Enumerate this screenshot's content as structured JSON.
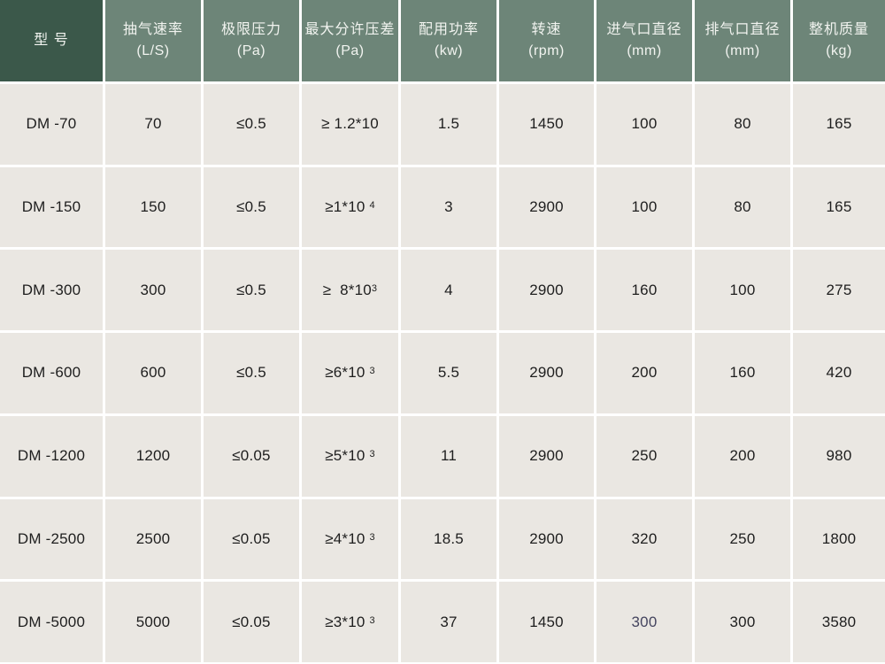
{
  "colors": {
    "header-dark": "#3b584a",
    "header-light": "#6d8578",
    "cell-bg": "#eae7e2",
    "grid-line": "#ffffff",
    "text": "#1e1e1e",
    "header-text": "#f2f4f0",
    "accent": "#45455f"
  },
  "table": {
    "columns": [
      {
        "line1": "型  号",
        "line2": ""
      },
      {
        "line1": "抽气速率",
        "line2": "(L/S)"
      },
      {
        "line1": "极限压力",
        "line2": "(Pa)"
      },
      {
        "line1": "最大分许压差",
        "line2": "(Pa)"
      },
      {
        "line1": "配用功率",
        "line2": "(kw)"
      },
      {
        "line1": "转速",
        "line2": "(rpm)"
      },
      {
        "line1": "进气口直径",
        "line2": "(mm)"
      },
      {
        "line1": "排气口直径",
        "line2": "(mm)"
      },
      {
        "line1": "整机质量",
        "line2": "(kg)"
      }
    ],
    "rows": [
      {
        "model": "DM -70",
        "pump_speed": "70",
        "ultimate_pressure": "≤0.5",
        "max_diff": {
          "base": "≥ 1.2*10",
          "sup": ""
        },
        "power": "1.5",
        "rpm": "1450",
        "inlet": "100",
        "outlet": "80",
        "weight": "165"
      },
      {
        "model": "DM -150",
        "pump_speed": "150",
        "ultimate_pressure": "≤0.5",
        "max_diff": {
          "base": "≥1*10 ",
          "sup": "4"
        },
        "power": "3",
        "rpm": "2900",
        "inlet": "100",
        "outlet": "80",
        "weight": "165"
      },
      {
        "model": "DM -300",
        "pump_speed": "300",
        "ultimate_pressure": "≤0.5",
        "max_diff": {
          "base": "≥  8*10",
          "sup": "3"
        },
        "power": "4",
        "rpm": "2900",
        "inlet": "160",
        "outlet": "100",
        "weight": "275"
      },
      {
        "model": "DM -600",
        "pump_speed": "600",
        "ultimate_pressure": "≤0.5",
        "max_diff": {
          "base": "≥6*10 ",
          "sup": "3"
        },
        "power": "5.5",
        "rpm": "2900",
        "inlet": "200",
        "outlet": "160",
        "weight": "420"
      },
      {
        "model": "DM -1200",
        "pump_speed": "1200",
        "ultimate_pressure": "≤0.05",
        "max_diff": {
          "base": "≥5*10 ",
          "sup": "3"
        },
        "power": "11",
        "rpm": "2900",
        "inlet": "250",
        "outlet": "200",
        "weight": "980"
      },
      {
        "model": "DM -2500",
        "pump_speed": "2500",
        "ultimate_pressure": "≤0.05",
        "max_diff": {
          "base": "≥4*10 ",
          "sup": "3"
        },
        "power": "18.5",
        "rpm": "2900",
        "inlet": "320",
        "outlet": "250",
        "weight": "1800"
      },
      {
        "model": "DM -5000",
        "pump_speed": "5000",
        "ultimate_pressure": "≤0.05",
        "max_diff": {
          "base": "≥3*10 ",
          "sup": "3"
        },
        "power": "37",
        "rpm": "1450",
        "inlet": "300",
        "outlet": "300",
        "weight": "3580"
      }
    ]
  },
  "chart_data": {
    "type": "table",
    "columns": [
      "型号",
      "抽气速率 (L/S)",
      "极限压力 (Pa)",
      "最大分许压差 (Pa)",
      "配用功率 (kw)",
      "转速 (rpm)",
      "进气口直径 (mm)",
      "排气口直径 (mm)",
      "整机质量 (kg)"
    ],
    "rows": [
      [
        "DM-70",
        "70",
        "≤0.5",
        "≥1.2*10",
        "1.5",
        "1450",
        "100",
        "80",
        "165"
      ],
      [
        "DM-150",
        "150",
        "≤0.5",
        "≥1*10^4",
        "3",
        "2900",
        "100",
        "80",
        "165"
      ],
      [
        "DM-300",
        "300",
        "≤0.5",
        "≥8*10^3",
        "4",
        "2900",
        "160",
        "100",
        "275"
      ],
      [
        "DM-600",
        "600",
        "≤0.5",
        "≥6*10^3",
        "5.5",
        "2900",
        "200",
        "160",
        "420"
      ],
      [
        "DM-1200",
        "1200",
        "≤0.05",
        "≥5*10^3",
        "11",
        "2900",
        "250",
        "200",
        "980"
      ],
      [
        "DM-2500",
        "2500",
        "≤0.05",
        "≥4*10^3",
        "18.5",
        "2900",
        "320",
        "250",
        "1800"
      ],
      [
        "DM-5000",
        "5000",
        "≤0.05",
        "≥3*10^3",
        "37",
        "1450",
        "300",
        "300",
        "3580"
      ]
    ]
  }
}
